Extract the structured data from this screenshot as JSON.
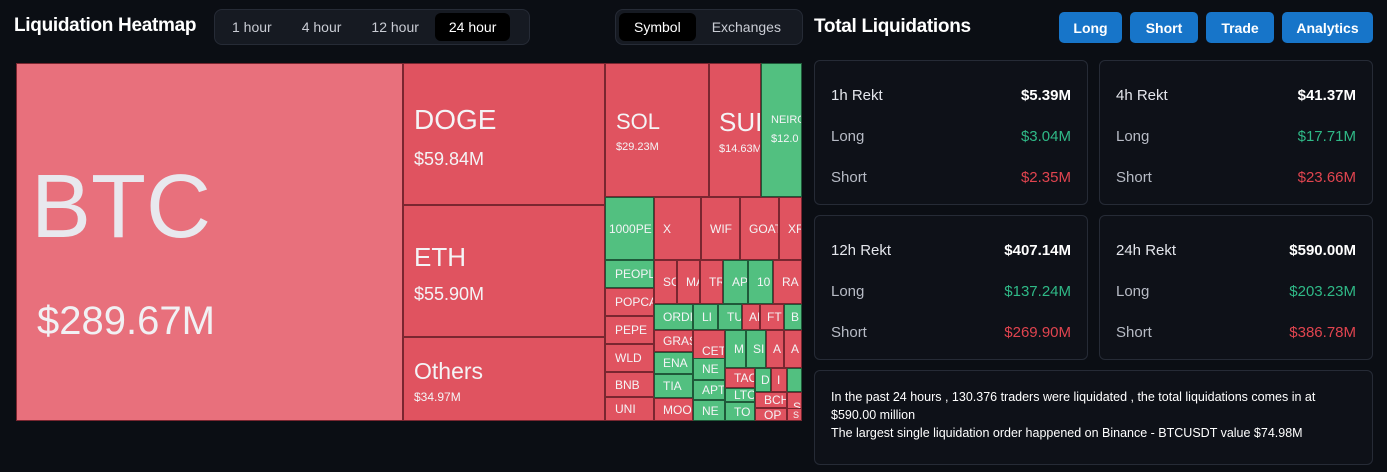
{
  "heatmap": {
    "title": "Liquidation Heatmap",
    "time_tabs": [
      "1 hour",
      "4 hour",
      "12 hour",
      "24 hour"
    ],
    "active_time_tab": "24 hour",
    "group_tabs": [
      "Symbol",
      "Exchanges"
    ],
    "active_group_tab": "Symbol",
    "tiles": {
      "btc": {
        "symbol": "BTC",
        "value": "$289.67M"
      },
      "doge": {
        "symbol": "DOGE",
        "value": "$59.84M"
      },
      "eth": {
        "symbol": "ETH",
        "value": "$55.90M"
      },
      "others": {
        "symbol": "Others",
        "value": "$34.97M"
      },
      "sol": {
        "symbol": "SOL",
        "value": "$29.23M"
      },
      "sui": {
        "symbol": "SUI",
        "value": "$14.63M"
      },
      "neiro": {
        "symbol": "NEIRO",
        "value": "$12.0"
      },
      "small": [
        "1000PE",
        "X",
        "WIF",
        "GOAT",
        "XR",
        "PEOPL",
        "SC",
        "MA",
        "TR",
        "AP",
        "10",
        "RA",
        "POPCA",
        "PEPE",
        "ORDI",
        "LI",
        "TU",
        "AI",
        "FT",
        "B",
        "GRAS",
        "CET",
        "M",
        "SI",
        "A",
        "A",
        "WLD",
        "ENA",
        "NE",
        "TAC",
        "D",
        "I",
        "BNB",
        "TIA",
        "APT",
        "LTC",
        "BCH",
        "S",
        "UNI",
        "MOO",
        "NE",
        "TO",
        "OP",
        "S"
      ]
    },
    "colors": {
      "loss": "#e05360",
      "gain": "#52c080",
      "btc": "#e8707c"
    }
  },
  "totals": {
    "title": "Total Liquidations",
    "buttons": [
      "Long",
      "Short",
      "Trade",
      "Analytics"
    ],
    "cards": [
      {
        "period": "1h Rekt",
        "total": "$5.39M",
        "long_label": "Long",
        "long": "$3.04M",
        "short_label": "Short",
        "short": "$2.35M"
      },
      {
        "period": "4h Rekt",
        "total": "$41.37M",
        "long_label": "Long",
        "long": "$17.71M",
        "short_label": "Short",
        "short": "$23.66M"
      },
      {
        "period": "12h Rekt",
        "total": "$407.14M",
        "long_label": "Long",
        "long": "$137.24M",
        "short_label": "Short",
        "short": "$269.90M"
      },
      {
        "period": "24h Rekt",
        "total": "$590.00M",
        "long_label": "Long",
        "long": "$203.23M",
        "short_label": "Short",
        "short": "$386.78M"
      }
    ],
    "summary_line1": "In the past 24 hours , 130.376 traders were liquidated , the total liquidations comes in at $590.00 million",
    "summary_line2": "The largest single liquidation order happened on Binance - BTCUSDT value $74.98M"
  }
}
